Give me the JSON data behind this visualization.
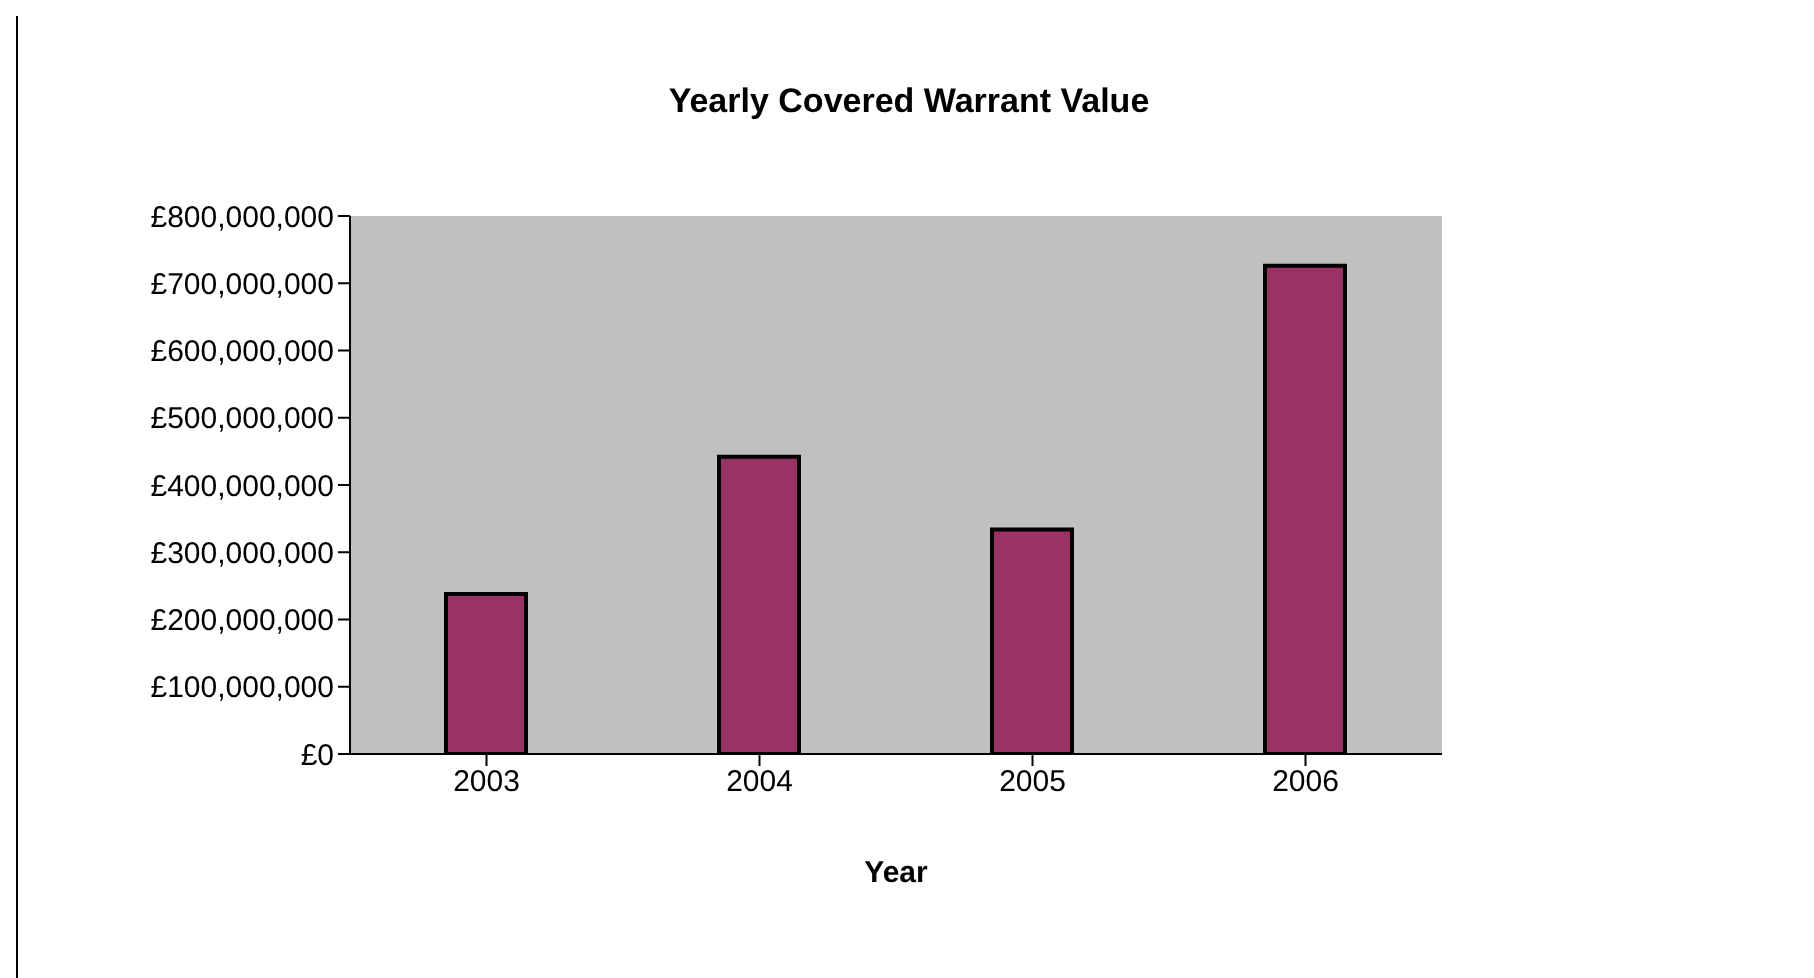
{
  "chart_data": {
    "type": "bar",
    "title": "Yearly Covered Warrant Value",
    "xlabel": "Year",
    "categories": [
      "2003",
      "2004",
      "2005",
      "2006"
    ],
    "values": [
      238000000,
      442000000,
      334000000,
      726000000
    ],
    "color": "#993366",
    "ylim": [
      0,
      800000000
    ],
    "yticks": [
      {
        "value": 0,
        "label": "£0"
      },
      {
        "value": 100000000,
        "label": "£100,000,000"
      },
      {
        "value": 200000000,
        "label": "£200,000,000"
      },
      {
        "value": 300000000,
        "label": "£300,000,000"
      },
      {
        "value": 400000000,
        "label": "£400,000,000"
      },
      {
        "value": 500000000,
        "label": "£500,000,000"
      },
      {
        "value": 600000000,
        "label": "£600,000,000"
      },
      {
        "value": 700000000,
        "label": "£700,000,000"
      },
      {
        "value": 800000000,
        "label": "£800,000,000"
      }
    ],
    "grid": false,
    "legend": false
  }
}
